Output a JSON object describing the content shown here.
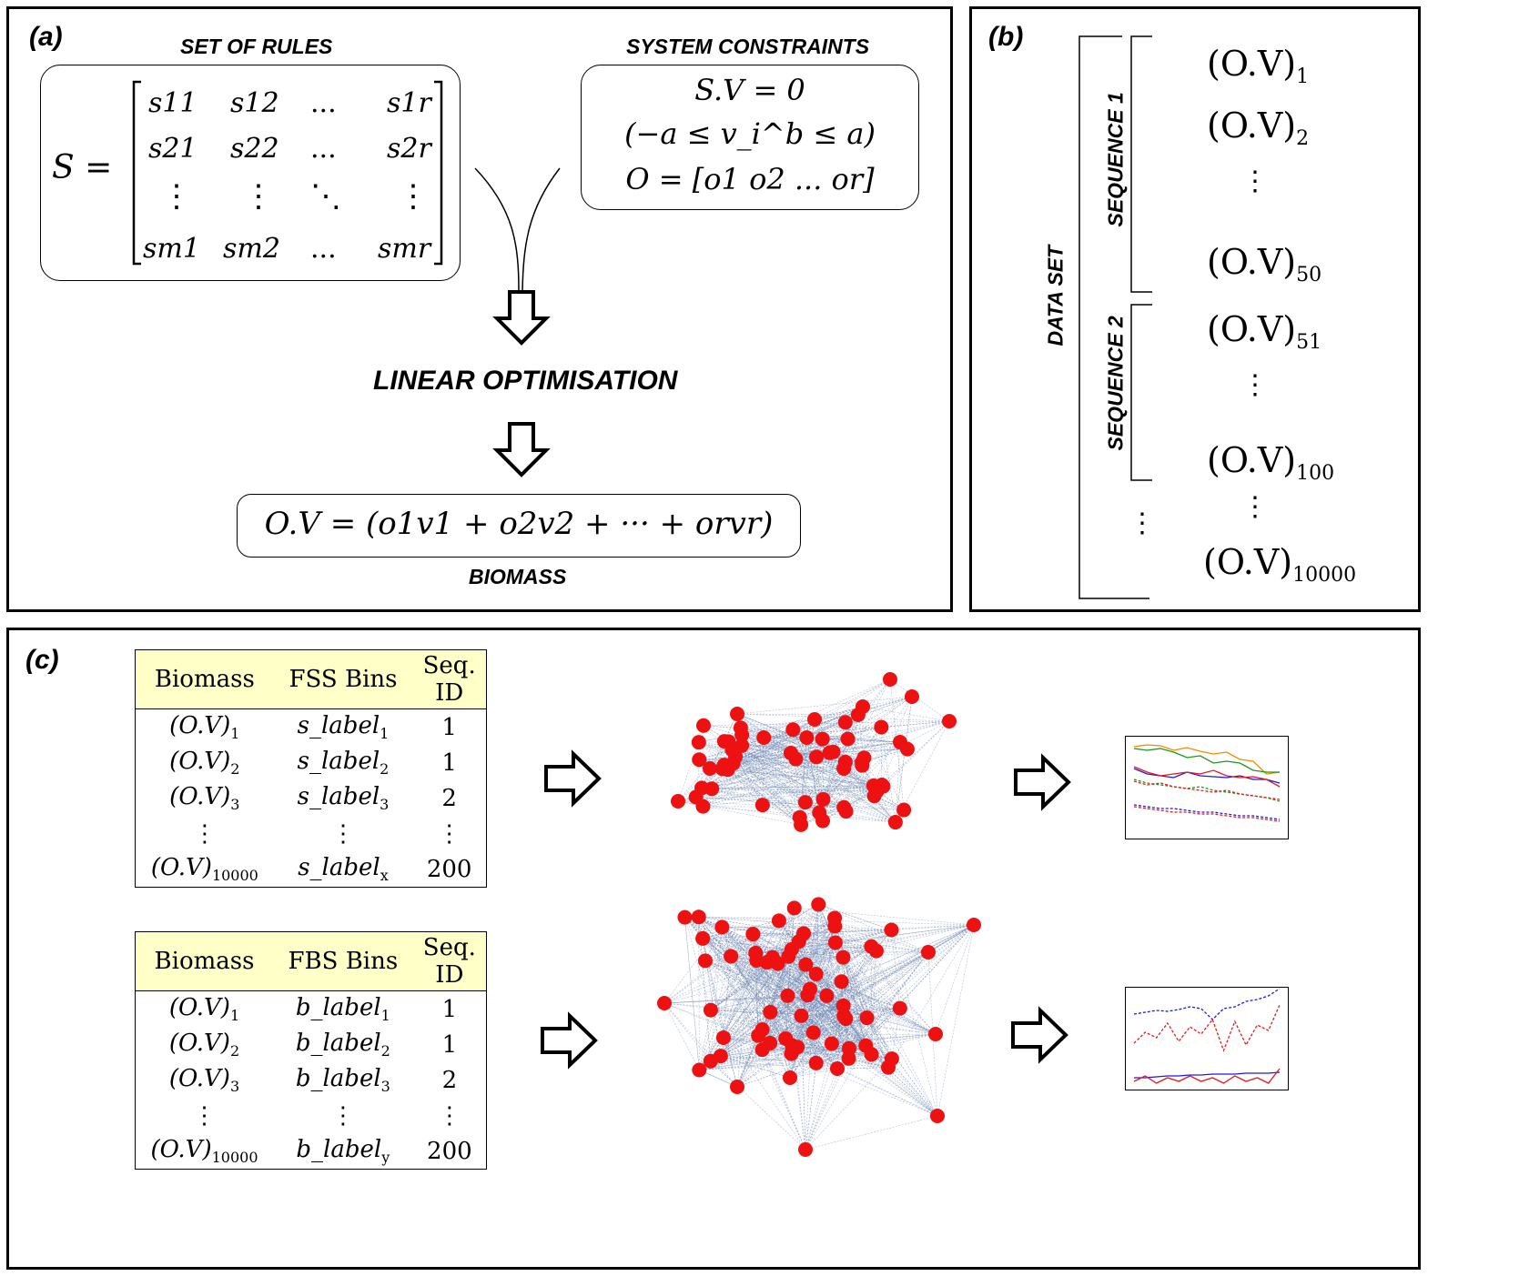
{
  "panel_a": {
    "label": "(a)",
    "rules_heading": "SET OF RULES",
    "constraints_heading": "SYSTEM CONSTRAINTS",
    "matrix_lhs": "S =",
    "matrix_rows": [
      [
        "s11",
        "s12",
        "...",
        "s1r"
      ],
      [
        "s21",
        "s22",
        "...",
        "s2r"
      ],
      [
        "⋮",
        "⋮",
        "⋱",
        "⋮"
      ],
      [
        "sm1",
        "sm2",
        "...",
        "smr"
      ]
    ],
    "constraint_1": "S.V = 0",
    "constraint_2": "(−a ≤ v_i^b ≤ a)",
    "constraint_3": "O = [o1  o2  ...  or]",
    "process_label": "LINEAR OPTIMISATION",
    "objective": "O.V = (o1v1 + o2v2 + ··· + orvr)",
    "output_label": "BIOMASS"
  },
  "panel_b": {
    "label": "(b)",
    "dataset_label": "DATA SET",
    "sequence_1_label": "SEQUENCE 1",
    "sequence_2_label": "SEQUENCE 2",
    "items": [
      {
        "text": "(O.V)",
        "sub": "1"
      },
      {
        "text": "(O.V)",
        "sub": "2"
      },
      {
        "text": "⋮",
        "sub": ""
      },
      {
        "text": "(O.V)",
        "sub": "50"
      },
      {
        "text": "(O.V)",
        "sub": "51"
      },
      {
        "text": "⋮",
        "sub": ""
      },
      {
        "text": "(O.V)",
        "sub": "100"
      },
      {
        "text": "⋮",
        "sub": ""
      },
      {
        "text": "(O.V)",
        "sub": "10000"
      }
    ],
    "outer_dots": "⋮"
  },
  "panel_c": {
    "label": "(c)",
    "table_fss": {
      "headers": [
        "Biomass",
        "FSS Bins",
        "Seq.\nID"
      ],
      "rows": [
        [
          "(O.V)",
          "1",
          "s_label",
          "1",
          "1"
        ],
        [
          "(O.V)",
          "2",
          "s_label",
          "2",
          "1"
        ],
        [
          "(O.V)",
          "3",
          "s_label",
          "3",
          "2"
        ],
        [
          "⋮",
          "",
          "⋮",
          "",
          "⋮"
        ],
        [
          "(O.V)",
          "10000",
          "s_label",
          "x",
          "200"
        ]
      ]
    },
    "table_fbs": {
      "headers": [
        "Biomass",
        "FBS Bins",
        "Seq.\nID"
      ],
      "rows": [
        [
          "(O.V)",
          "1",
          "b_label",
          "1",
          "1"
        ],
        [
          "(O.V)",
          "2",
          "b_label",
          "2",
          "1"
        ],
        [
          "(O.V)",
          "3",
          "b_label",
          "3",
          "2"
        ],
        [
          "⋮",
          "",
          "⋮",
          "",
          "⋮"
        ],
        [
          "(O.V)",
          "10000",
          "b_label",
          "y",
          "200"
        ]
      ]
    }
  },
  "colors": {
    "node": "#ee1111",
    "edge": "#6f86b4",
    "table_header": "#ffffc8",
    "line_orange": "#f08c00",
    "line_green": "#1a9a1a",
    "line_blue": "#1a1ae6",
    "line_red": "#e61a1a"
  }
}
